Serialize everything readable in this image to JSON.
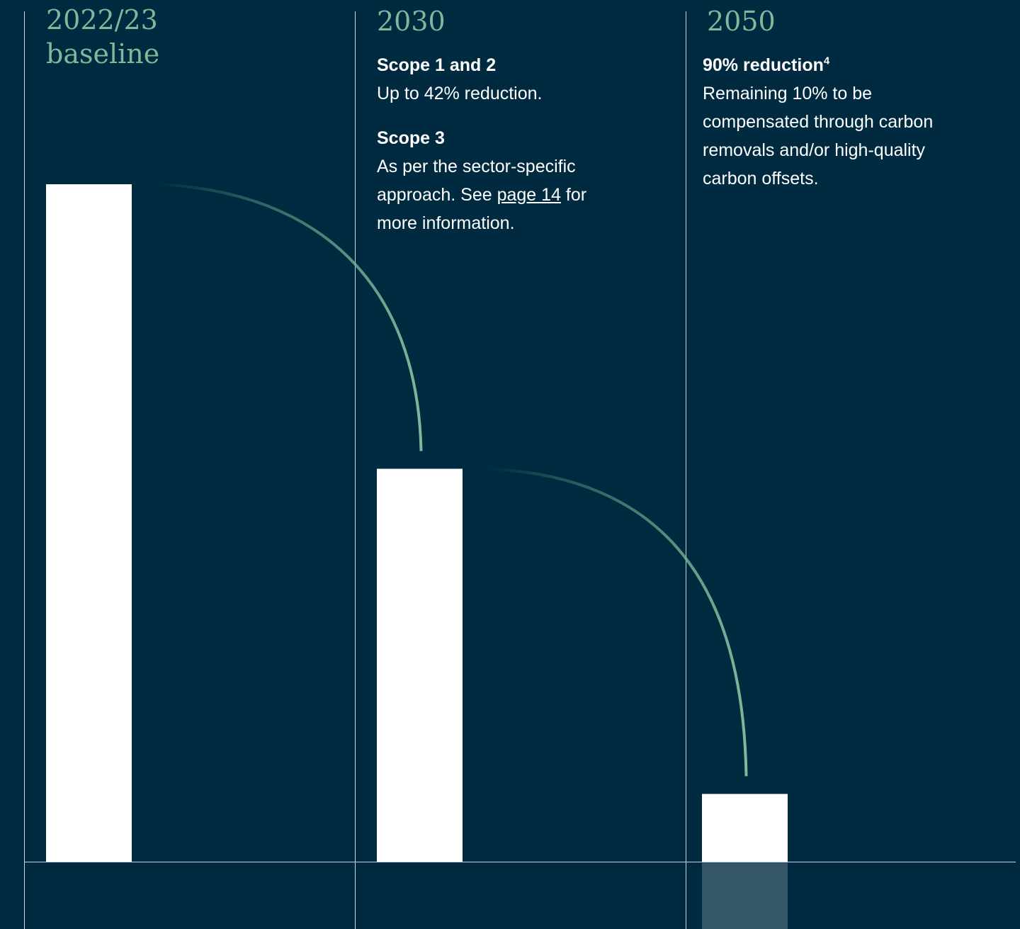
{
  "chart_data": {
    "type": "bar",
    "categories": [
      "2022/23 baseline",
      "2030",
      "2050"
    ],
    "values": [
      100,
      58,
      10
    ],
    "ylim": [
      0,
      100
    ],
    "grid": false,
    "annotations": [
      {
        "category": "2030",
        "lines": [
          {
            "heading": "Scope 1 and 2",
            "text": "Up to 42% reduction."
          },
          {
            "heading": "Scope 3",
            "text_before_link": "As per the sector-specific approach. See ",
            "link": "page 14",
            "text_after_link": " for  more information."
          }
        ]
      },
      {
        "category": "2050",
        "heading": "90% reduction",
        "superscript": "4",
        "text": "Remaining 10% to be compensated through carbon removals and/or high-quality carbon offsets."
      }
    ]
  },
  "colors": {
    "background": "#002a3f",
    "bar": "#ffffff",
    "accent": "#7fb89a",
    "bar_below_axis": "#355668"
  }
}
